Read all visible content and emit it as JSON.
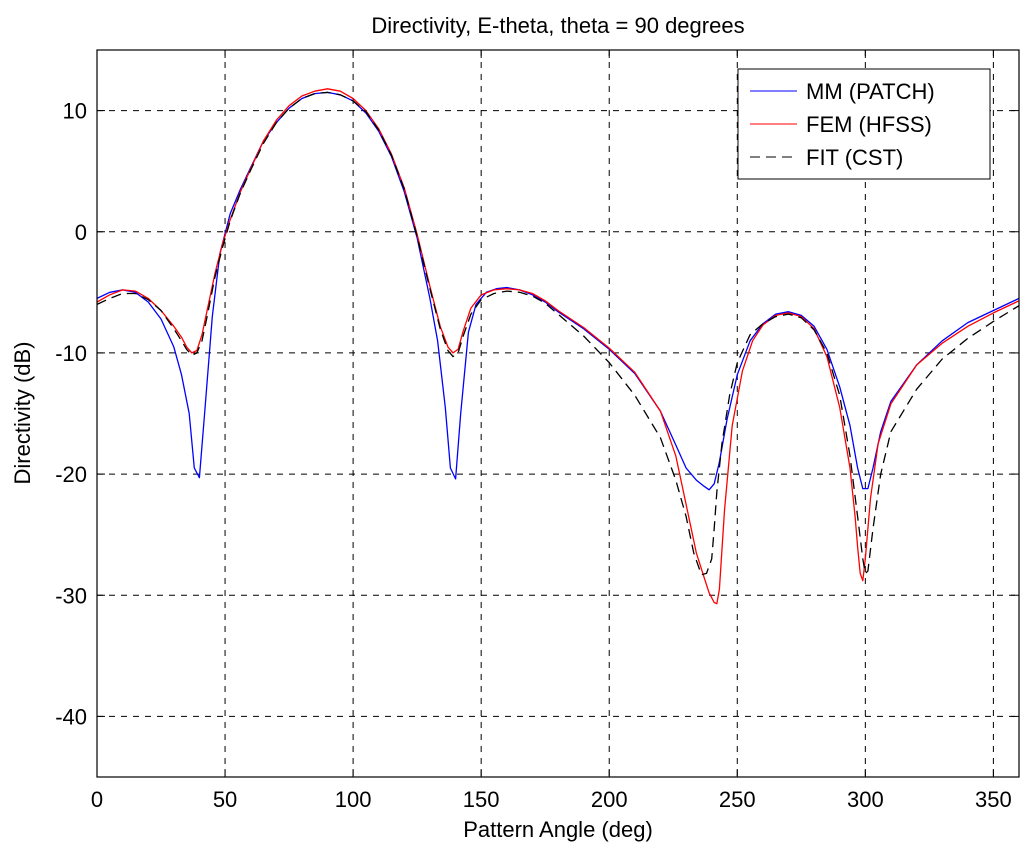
{
  "chart_data": {
    "type": "line",
    "title": "Directivity, E-theta, theta = 90 degrees",
    "xlabel": "Pattern Angle (deg)",
    "ylabel": "Directivity (dB)",
    "xlim": [
      0,
      360
    ],
    "ylim": [
      -45,
      15
    ],
    "xticks": [
      0,
      50,
      100,
      150,
      200,
      250,
      300,
      350
    ],
    "yticks": [
      -40,
      -30,
      -20,
      -10,
      0,
      10
    ],
    "grid": true,
    "legend_position": "top-right",
    "series": [
      {
        "name": "MM (PATCH)",
        "color": "#0000ff",
        "dash": "solid",
        "x": [
          0,
          5,
          10,
          15,
          20,
          25,
          30,
          33,
          36,
          38,
          40,
          42,
          45,
          48,
          52,
          56,
          60,
          65,
          70,
          75,
          80,
          85,
          90,
          95,
          100,
          105,
          110,
          115,
          120,
          125,
          130,
          133,
          136,
          138,
          140,
          142,
          145,
          148,
          152,
          156,
          160,
          165,
          170,
          175,
          180,
          190,
          200,
          210,
          220,
          226,
          230,
          234,
          237,
          239,
          241,
          243,
          246,
          250,
          255,
          260,
          265,
          270,
          275,
          280,
          285,
          290,
          294,
          297,
          299,
          301,
          303,
          306,
          310,
          320,
          330,
          340,
          350,
          360
        ],
        "y": [
          -5.5,
          -5.0,
          -4.8,
          -5.0,
          -5.8,
          -7.2,
          -9.5,
          -11.8,
          -15.0,
          -19.5,
          -20.3,
          -15.0,
          -7.0,
          -1.8,
          1.5,
          3.5,
          5.3,
          7.5,
          9.0,
          10.2,
          11.0,
          11.4,
          11.5,
          11.3,
          10.8,
          9.8,
          8.3,
          6.2,
          3.3,
          -0.5,
          -5.5,
          -9.0,
          -14.5,
          -19.5,
          -20.4,
          -15.0,
          -8.3,
          -6.0,
          -5.0,
          -4.7,
          -4.6,
          -4.8,
          -5.2,
          -5.8,
          -6.6,
          -8.0,
          -9.7,
          -11.7,
          -14.8,
          -17.6,
          -19.5,
          -20.5,
          -21.0,
          -21.3,
          -20.8,
          -19.0,
          -15.5,
          -11.8,
          -9.0,
          -7.6,
          -6.8,
          -6.6,
          -6.9,
          -7.8,
          -9.7,
          -12.8,
          -16.0,
          -19.5,
          -21.2,
          -21.2,
          -19.5,
          -16.5,
          -14.0,
          -11.0,
          -9.0,
          -7.5,
          -6.5,
          -5.5
        ]
      },
      {
        "name": "FEM (HFSS)",
        "color": "#ff0000",
        "dash": "solid",
        "x": [
          0,
          5,
          10,
          15,
          20,
          25,
          30,
          33,
          35,
          37,
          39,
          41,
          43,
          46,
          49,
          52,
          56,
          60,
          65,
          70,
          75,
          80,
          85,
          90,
          95,
          100,
          105,
          110,
          115,
          120,
          125,
          130,
          134,
          137,
          139,
          141,
          143,
          146,
          150,
          155,
          160,
          165,
          170,
          175,
          180,
          190,
          200,
          210,
          220,
          226,
          230,
          234,
          237,
          239,
          241,
          242,
          243,
          245,
          248,
          252,
          256,
          260,
          265,
          270,
          275,
          280,
          285,
          290,
          294,
          296,
          297,
          298,
          299,
          300,
          302,
          305,
          310,
          320,
          330,
          340,
          350,
          360
        ],
        "y": [
          -5.8,
          -5.2,
          -4.8,
          -4.9,
          -5.5,
          -6.5,
          -7.8,
          -8.7,
          -9.5,
          -10.0,
          -9.8,
          -8.5,
          -6.5,
          -3.5,
          -1.0,
          1.0,
          3.3,
          5.2,
          7.5,
          9.2,
          10.4,
          11.2,
          11.6,
          11.8,
          11.6,
          11.0,
          10.0,
          8.5,
          6.4,
          3.6,
          -0.2,
          -4.5,
          -7.8,
          -9.5,
          -10.0,
          -9.7,
          -8.2,
          -6.3,
          -5.2,
          -4.8,
          -4.7,
          -4.8,
          -5.1,
          -5.7,
          -6.5,
          -7.9,
          -9.6,
          -11.6,
          -14.8,
          -18.5,
          -22.5,
          -26.5,
          -28.5,
          -29.8,
          -30.6,
          -30.7,
          -29.5,
          -23.0,
          -16.0,
          -11.5,
          -9.0,
          -7.7,
          -6.9,
          -6.7,
          -7.0,
          -8.0,
          -10.3,
          -14.5,
          -19.5,
          -23.5,
          -26.0,
          -28.2,
          -28.8,
          -27.0,
          -22.0,
          -17.5,
          -14.2,
          -11.0,
          -9.2,
          -7.8,
          -6.7,
          -5.7
        ]
      },
      {
        "name": "FIT (CST)",
        "color": "#000000",
        "dash": "dashed",
        "x": [
          0,
          5,
          10,
          15,
          20,
          25,
          30,
          33,
          35,
          37,
          39,
          41,
          43,
          46,
          49,
          52,
          56,
          60,
          65,
          70,
          75,
          80,
          85,
          90,
          95,
          100,
          105,
          110,
          115,
          120,
          125,
          130,
          134,
          137,
          139,
          141,
          143,
          146,
          150,
          155,
          160,
          165,
          170,
          175,
          180,
          190,
          200,
          210,
          220,
          226,
          230,
          233,
          236,
          238,
          240,
          241,
          242,
          244,
          247,
          250,
          255,
          260,
          265,
          270,
          275,
          280,
          285,
          290,
          294,
          297,
          299,
          300,
          301,
          303,
          306,
          310,
          320,
          330,
          340,
          350,
          360
        ],
        "y": [
          -6.0,
          -5.5,
          -5.1,
          -5.1,
          -5.6,
          -6.5,
          -8.0,
          -9.0,
          -9.7,
          -10.2,
          -10.0,
          -9.0,
          -7.0,
          -3.8,
          -1.3,
          0.9,
          3.2,
          5.1,
          7.3,
          9.0,
          10.2,
          11.0,
          11.4,
          11.5,
          11.3,
          10.8,
          9.9,
          8.4,
          6.3,
          3.5,
          -0.4,
          -4.7,
          -8.0,
          -9.8,
          -10.3,
          -10.0,
          -8.6,
          -6.8,
          -5.6,
          -5.1,
          -4.9,
          -5.0,
          -5.3,
          -5.9,
          -6.8,
          -8.6,
          -10.8,
          -13.5,
          -17.0,
          -20.5,
          -23.5,
          -26.5,
          -28.3,
          -28.2,
          -27.0,
          -24.5,
          -21.5,
          -17.5,
          -13.5,
          -10.8,
          -8.5,
          -7.6,
          -7.0,
          -6.8,
          -7.1,
          -8.1,
          -10.0,
          -13.5,
          -18.5,
          -23.5,
          -27.0,
          -28.2,
          -28.0,
          -24.5,
          -20.0,
          -16.5,
          -13.0,
          -10.5,
          -8.8,
          -7.4,
          -6.1
        ]
      }
    ]
  }
}
